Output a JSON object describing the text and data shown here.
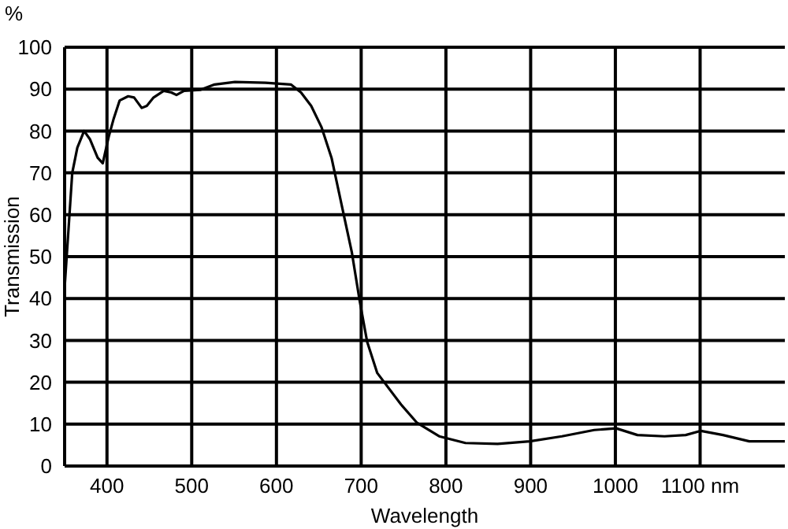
{
  "chart_data": {
    "type": "line",
    "xlabel": "Wavelength",
    "ylabel": "Transmission",
    "annotations": [
      "%"
    ],
    "xlim": [
      350,
      1200
    ],
    "xticks": [
      400,
      500,
      600,
      700,
      800,
      900,
      1000,
      {
        "value": 1100,
        "label": "1100 nm"
      }
    ],
    "ylim": [
      0,
      100
    ],
    "yticks": [
      0,
      10,
      20,
      30,
      40,
      50,
      60,
      70,
      80,
      90,
      100
    ],
    "grid": true,
    "marker": "none",
    "line_style": "solid",
    "series": [
      {
        "color": "#000000",
        "x": [
          350,
          359,
          365,
          373,
          380,
          389,
          395,
          402,
          408,
          415,
          425,
          432,
          441,
          447,
          455,
          467,
          476,
          482,
          491,
          510,
          527,
          551,
          587,
          617,
          629,
          641,
          653,
          665,
          677,
          689,
          698,
          707,
          719,
          747,
          766,
          792,
          823,
          861,
          899,
          937,
          975,
          1001,
          1026,
          1058,
          1083,
          1101,
          1127,
          1158,
          1200
        ],
        "values": [
          42.5,
          70,
          76,
          80,
          78,
          73.6,
          72.3,
          78.6,
          83,
          87.3,
          88.3,
          88,
          85.5,
          86,
          88,
          89.6,
          89.2,
          88.6,
          89.6,
          89.8,
          91.1,
          91.7,
          91.5,
          91.1,
          89.2,
          86,
          81,
          73.6,
          62.3,
          51,
          39.7,
          29.7,
          22.2,
          14.7,
          10.3,
          7.1,
          5.5,
          5.3,
          5.9,
          7.1,
          8.6,
          9,
          7.4,
          7.1,
          7.4,
          8.4,
          7.4,
          5.9,
          5.9
        ]
      }
    ]
  }
}
